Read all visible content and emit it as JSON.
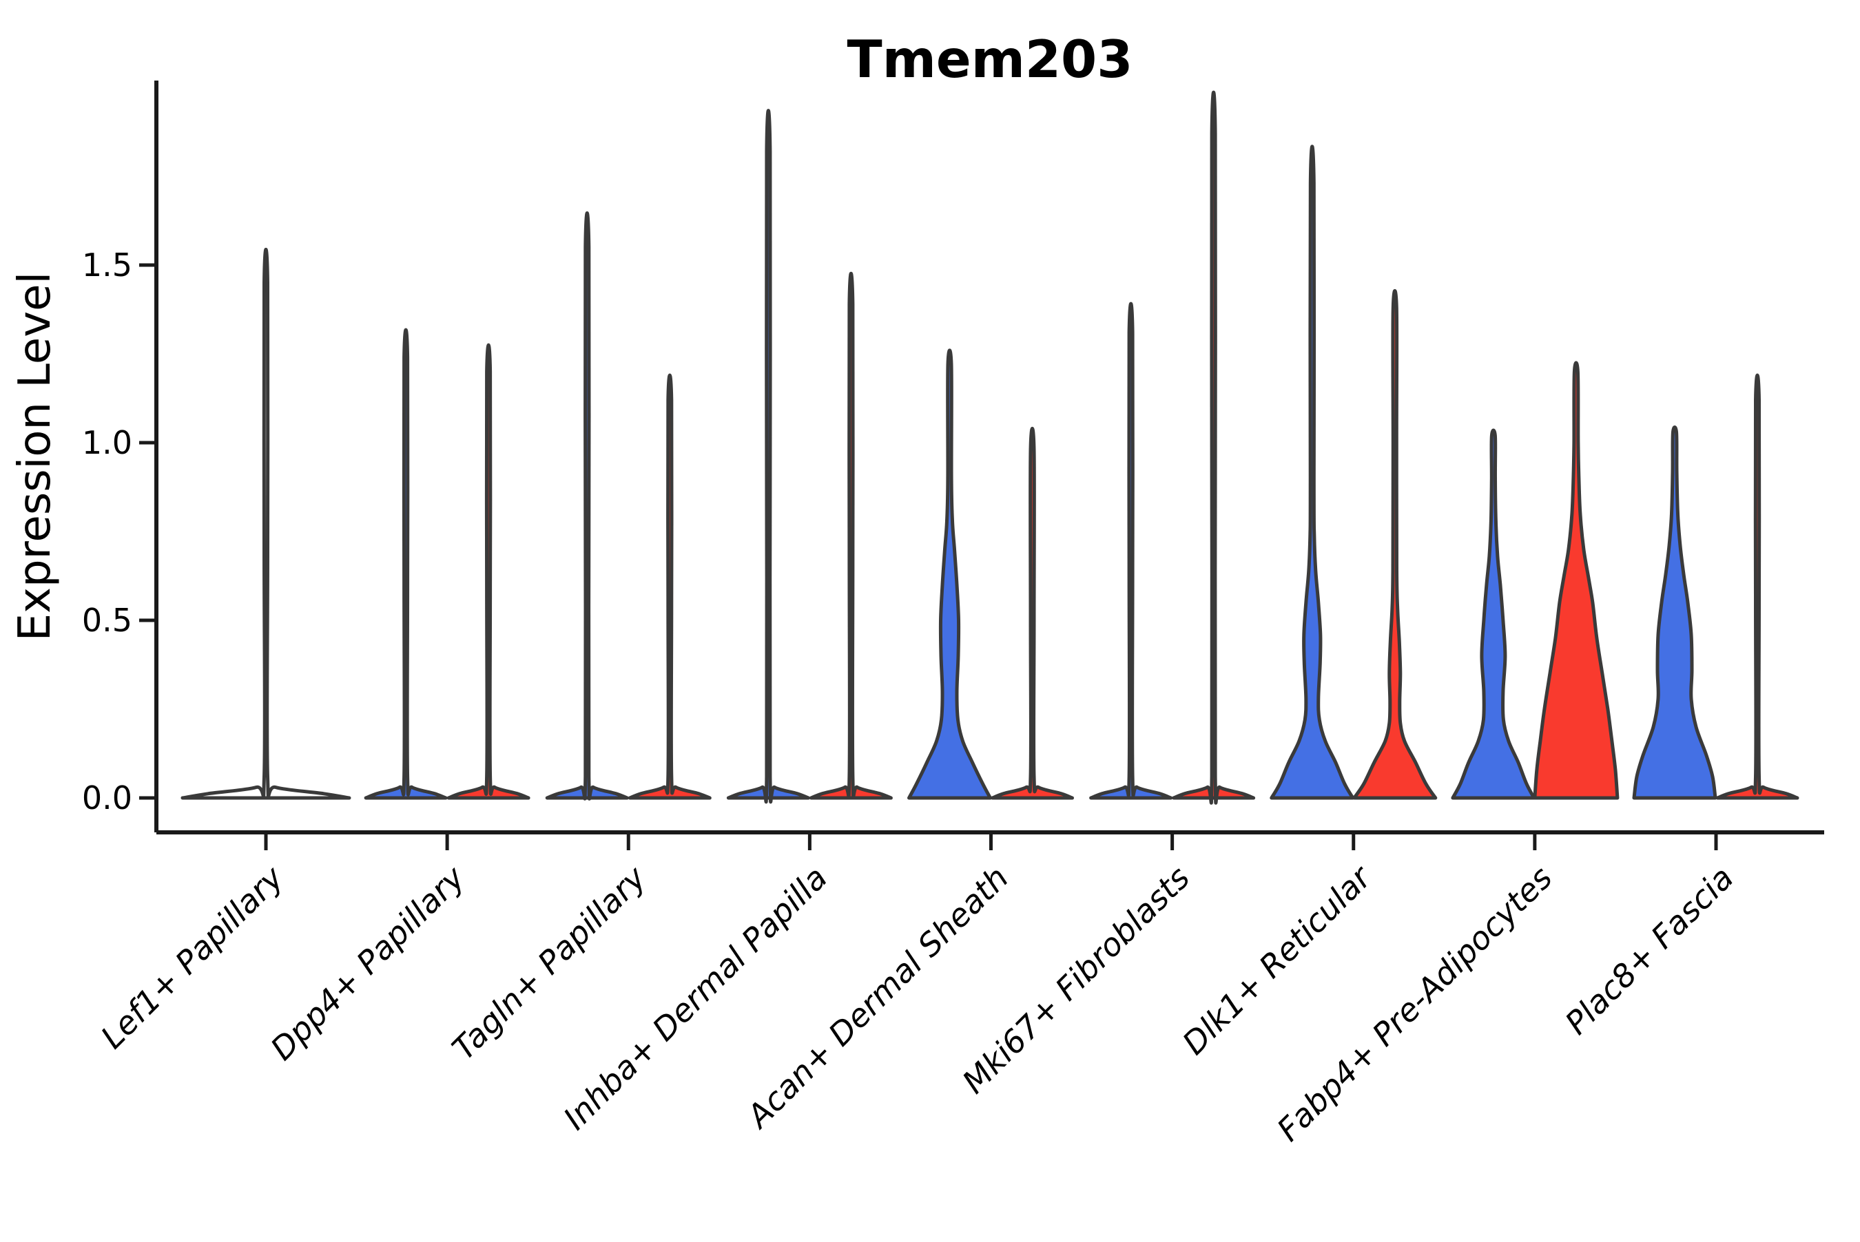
{
  "figure": {
    "title": "Tmem203"
  },
  "chart_data": {
    "type": "violin",
    "title": "Tmem203",
    "xlabel": "",
    "ylabel": "Expression Level",
    "ylim": [
      -0.1,
      2.02
    ],
    "grid": false,
    "legend": null,
    "ytick_values": [
      0.0,
      0.5,
      1.0,
      1.5
    ],
    "ytick_labels": [
      "0.0",
      "0.5",
      "1.0",
      "1.5"
    ],
    "style": {
      "outline_color": "#3A3A3A",
      "spine_color": "#1a1a1a",
      "blue_fill": "#4470E4",
      "red_fill": "#F93A2E",
      "background": "#ffffff"
    },
    "groups": [
      {
        "position": "left",
        "color": "#4470E4"
      },
      {
        "position": "right",
        "color": "#F93A2E"
      }
    ],
    "categories": [
      {
        "label": "Lef1+ Papillary",
        "violins": [
          {
            "side": "center",
            "fill": null,
            "max_expression": 1.45,
            "body_visible": false,
            "shape_profile": [
              [
                0,
                121
              ],
              [
                0.012,
                84
              ],
              [
                0.03,
                14
              ],
              [
                0.06,
                2.5
              ],
              [
                0.7,
                2.5
              ],
              [
                1.45,
                2.5
              ]
            ]
          }
        ]
      },
      {
        "label": "Dpp4+ Papillary",
        "violins": [
          {
            "side": "left",
            "fill": "#4470E4",
            "max_expression": 1.24,
            "body_visible": false,
            "shape_profile": [
              [
                0,
                58
              ],
              [
                0.012,
                42
              ],
              [
                0.03,
                9
              ],
              [
                0.06,
                2.5
              ],
              [
                0.62,
                2.5
              ],
              [
                1.24,
                2.5
              ]
            ]
          },
          {
            "side": "right",
            "fill": "#F93A2E",
            "max_expression": 1.2,
            "body_visible": false,
            "shape_profile": [
              [
                0,
                58
              ],
              [
                0.012,
                42
              ],
              [
                0.03,
                9
              ],
              [
                0.06,
                2.5
              ],
              [
                0.6,
                2.5
              ],
              [
                1.2,
                2.5
              ]
            ]
          }
        ]
      },
      {
        "label": "Tagln+ Papillary",
        "violins": [
          {
            "side": "left",
            "fill": "#4470E4",
            "max_expression": 1.55,
            "body_visible": false,
            "shape_profile": [
              [
                0,
                58
              ],
              [
                0.012,
                42
              ],
              [
                0.03,
                9
              ],
              [
                0.06,
                2.5
              ],
              [
                0.78,
                2.5
              ],
              [
                1.55,
                2.5
              ]
            ]
          },
          {
            "side": "right",
            "fill": "#F93A2E",
            "max_expression": 1.12,
            "body_visible": false,
            "shape_profile": [
              [
                0,
                58
              ],
              [
                0.012,
                42
              ],
              [
                0.03,
                9
              ],
              [
                0.06,
                2.5
              ],
              [
                0.56,
                2.5
              ],
              [
                1.12,
                2.5
              ]
            ]
          }
        ]
      },
      {
        "label": "Inhba+ Dermal Papilla",
        "violins": [
          {
            "side": "left",
            "fill": "#4470E4",
            "max_expression": 1.82,
            "body_visible": false,
            "shape_profile": [
              [
                0,
                58
              ],
              [
                0.012,
                42
              ],
              [
                0.03,
                9
              ],
              [
                0.06,
                2.5
              ],
              [
                0.9,
                2.5
              ],
              [
                1.82,
                2.5
              ]
            ]
          },
          {
            "side": "right",
            "fill": "#F93A2E",
            "max_expression": 1.39,
            "body_visible": false,
            "shape_profile": [
              [
                0,
                58
              ],
              [
                0.012,
                42
              ],
              [
                0.03,
                9
              ],
              [
                0.06,
                2.5
              ],
              [
                0.7,
                2.5
              ],
              [
                1.39,
                2.5
              ]
            ]
          }
        ]
      },
      {
        "label": "Acan+ Dermal Sheath",
        "violins": [
          {
            "side": "left",
            "fill": "#4470E4",
            "max_expression": 1.22,
            "body_visible": true,
            "shape_profile": [
              [
                0,
                59
              ],
              [
                0.04,
                48
              ],
              [
                0.1,
                33
              ],
              [
                0.16,
                19
              ],
              [
                0.22,
                12
              ],
              [
                0.3,
                10.5
              ],
              [
                0.4,
                12.5
              ],
              [
                0.5,
                13
              ],
              [
                0.6,
                10.5
              ],
              [
                0.7,
                7
              ],
              [
                0.78,
                4
              ],
              [
                0.9,
                2.6
              ],
              [
                1.22,
                2.5
              ]
            ]
          },
          {
            "side": "right",
            "fill": "#F93A2E",
            "max_expression": 0.98,
            "body_visible": false,
            "shape_profile": [
              [
                0,
                58
              ],
              [
                0.012,
                42
              ],
              [
                0.03,
                9
              ],
              [
                0.06,
                2.5
              ],
              [
                0.5,
                2.5
              ],
              [
                0.98,
                2.5
              ]
            ]
          }
        ]
      },
      {
        "label": "Mki67+ Fibroblasts",
        "violins": [
          {
            "side": "left",
            "fill": "#4470E4",
            "max_expression": 1.31,
            "body_visible": false,
            "shape_profile": [
              [
                0,
                58
              ],
              [
                0.012,
                42
              ],
              [
                0.03,
                9
              ],
              [
                0.06,
                2.5
              ],
              [
                0.66,
                2.5
              ],
              [
                1.31,
                2.5
              ]
            ]
          },
          {
            "side": "right",
            "fill": "#F93A2E",
            "max_expression": 1.87,
            "body_visible": false,
            "shape_profile": [
              [
                0,
                58
              ],
              [
                0.012,
                42
              ],
              [
                0.03,
                9
              ],
              [
                0.06,
                2.5
              ],
              [
                0.94,
                2.5
              ],
              [
                1.87,
                2.5
              ]
            ]
          }
        ]
      },
      {
        "label": "Dlk1+ Reticular",
        "violins": [
          {
            "side": "left",
            "fill": "#4470E4",
            "max_expression": 1.73,
            "body_visible": true,
            "shape_profile": [
              [
                0,
                59
              ],
              [
                0.04,
                47
              ],
              [
                0.1,
                34
              ],
              [
                0.16,
                19
              ],
              [
                0.22,
                10.5
              ],
              [
                0.28,
                9
              ],
              [
                0.38,
                11.5
              ],
              [
                0.46,
                12
              ],
              [
                0.55,
                9
              ],
              [
                0.64,
                5
              ],
              [
                0.74,
                3
              ],
              [
                0.9,
                2.6
              ],
              [
                1.73,
                2.5
              ]
            ]
          },
          {
            "side": "right",
            "fill": "#F93A2E",
            "max_expression": 1.38,
            "body_visible": true,
            "shape_profile": [
              [
                0,
                59
              ],
              [
                0.04,
                45
              ],
              [
                0.1,
                30
              ],
              [
                0.16,
                14
              ],
              [
                0.21,
                8
              ],
              [
                0.27,
                7
              ],
              [
                0.35,
                8
              ],
              [
                0.44,
                6.5
              ],
              [
                0.53,
                4
              ],
              [
                0.64,
                2.8
              ],
              [
                1.0,
                2.5
              ],
              [
                1.38,
                2.5
              ]
            ]
          }
        ]
      },
      {
        "label": "Fabp4+ Pre-Adipocytes",
        "violins": [
          {
            "side": "left",
            "fill": "#4470E4",
            "max_expression": 1.02,
            "body_visible": true,
            "shape_profile": [
              [
                0,
                59
              ],
              [
                0.04,
                48
              ],
              [
                0.1,
                36
              ],
              [
                0.16,
                22
              ],
              [
                0.22,
                14.5
              ],
              [
                0.3,
                14
              ],
              [
                0.4,
                17
              ],
              [
                0.5,
                14
              ],
              [
                0.6,
                10
              ],
              [
                0.68,
                6
              ],
              [
                0.78,
                3.5
              ],
              [
                0.9,
                2.6
              ],
              [
                1.02,
                2.5
              ]
            ]
          },
          {
            "side": "right",
            "fill": "#F93A2E",
            "max_expression": 1.2,
            "body_visible": true,
            "shape_profile": [
              [
                0,
                60
              ],
              [
                0.08,
                57
              ],
              [
                0.16,
                52
              ],
              [
                0.25,
                46
              ],
              [
                0.35,
                38
              ],
              [
                0.45,
                30
              ],
              [
                0.55,
                24
              ],
              [
                0.62,
                18
              ],
              [
                0.7,
                11
              ],
              [
                0.8,
                6
              ],
              [
                0.9,
                4
              ],
              [
                1.0,
                3
              ],
              [
                1.2,
                2.5
              ]
            ]
          }
        ]
      },
      {
        "label": "Plac8+ Fascia",
        "violins": [
          {
            "side": "left",
            "fill": "#4470E4",
            "max_expression": 1.03,
            "body_visible": true,
            "shape_profile": [
              [
                0,
                59
              ],
              [
                0.06,
                55
              ],
              [
                0.12,
                46
              ],
              [
                0.2,
                31
              ],
              [
                0.28,
                24
              ],
              [
                0.36,
                25
              ],
              [
                0.46,
                24
              ],
              [
                0.55,
                19
              ],
              [
                0.63,
                13
              ],
              [
                0.71,
                8
              ],
              [
                0.8,
                4.5
              ],
              [
                0.92,
                3
              ],
              [
                1.03,
                2.5
              ]
            ]
          },
          {
            "side": "right",
            "fill": "#F93A2E",
            "max_expression": 1.12,
            "body_visible": false,
            "shape_profile": [
              [
                0,
                58
              ],
              [
                0.012,
                42
              ],
              [
                0.03,
                9
              ],
              [
                0.06,
                2.5
              ],
              [
                0.56,
                2.5
              ],
              [
                1.12,
                2.5
              ]
            ]
          }
        ]
      }
    ]
  }
}
